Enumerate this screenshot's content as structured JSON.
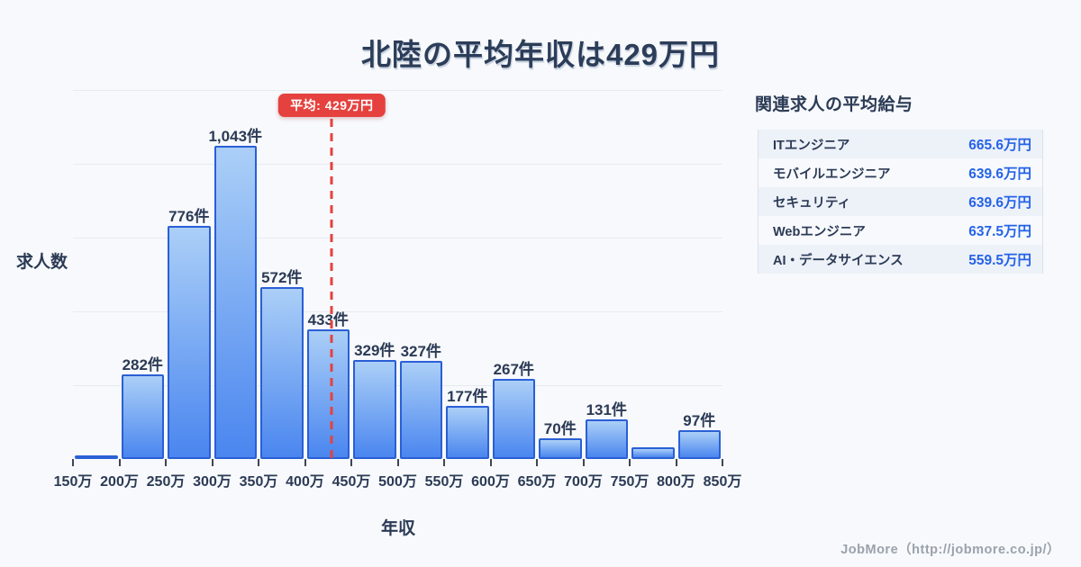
{
  "title": "北陸の平均年収は429万円",
  "chart_data": {
    "type": "bar",
    "title": "北陸の平均年収は429万円",
    "xlabel": "年収",
    "ylabel": "求人数",
    "unit_suffix": "件",
    "x_tick_labels": [
      "150万",
      "200万",
      "250万",
      "300万",
      "350万",
      "400万",
      "450万",
      "500万",
      "550万",
      "600万",
      "650万",
      "700万",
      "750万",
      "800万",
      "850万"
    ],
    "bins": [
      {
        "range": "150万-200万",
        "value": 12,
        "label": ""
      },
      {
        "range": "200万-250万",
        "value": 282,
        "label": "282件"
      },
      {
        "range": "250万-300万",
        "value": 776,
        "label": "776件"
      },
      {
        "range": "300万-350万",
        "value": 1043,
        "label": "1,043件"
      },
      {
        "range": "350万-400万",
        "value": 572,
        "label": "572件"
      },
      {
        "range": "400万-450万",
        "value": 433,
        "label": "433件"
      },
      {
        "range": "450万-500万",
        "value": 329,
        "label": "329件"
      },
      {
        "range": "500万-550万",
        "value": 327,
        "label": "327件"
      },
      {
        "range": "550万-600万",
        "value": 177,
        "label": "177件"
      },
      {
        "range": "600万-650万",
        "value": 267,
        "label": "267件"
      },
      {
        "range": "650万-700万",
        "value": 70,
        "label": "70件"
      },
      {
        "range": "700万-750万",
        "value": 131,
        "label": "131件"
      },
      {
        "range": "750万-800万",
        "value": 40,
        "label": ""
      },
      {
        "range": "800万-850万",
        "value": 97,
        "label": "97件"
      }
    ],
    "average_line": {
      "x_value": 429,
      "badge_label": "平均: 429万円"
    },
    "ylim": [
      0,
      1230
    ],
    "gridline_count": 5,
    "legend": "none"
  },
  "side_panel": {
    "title": "関連求人の平均給与",
    "rows": [
      {
        "name": "ITエンジニア",
        "value": "665.6万円"
      },
      {
        "name": "モバイルエンジニア",
        "value": "639.6万円"
      },
      {
        "name": "セキュリティ",
        "value": "639.6万円"
      },
      {
        "name": "Webエンジニア",
        "value": "637.5万円"
      },
      {
        "name": "AI・データサイエンス",
        "value": "559.5万円"
      }
    ]
  },
  "footer": {
    "credit": "JobMore（http://jobmore.co.jp/）"
  },
  "colors": {
    "background": "#f7f9fc",
    "title_text": "#2c3d59",
    "bar_border": "#2a5fd6",
    "bar_gradient_top": "#abcff7",
    "bar_gradient_bottom": "#4a86ef",
    "gridline": "#e7ebf2",
    "average_red": "#e5413e",
    "salary_value_blue": "#2563e8",
    "alt_row_bg": "#edf1f8",
    "footer_gray": "#9ba2ac"
  }
}
